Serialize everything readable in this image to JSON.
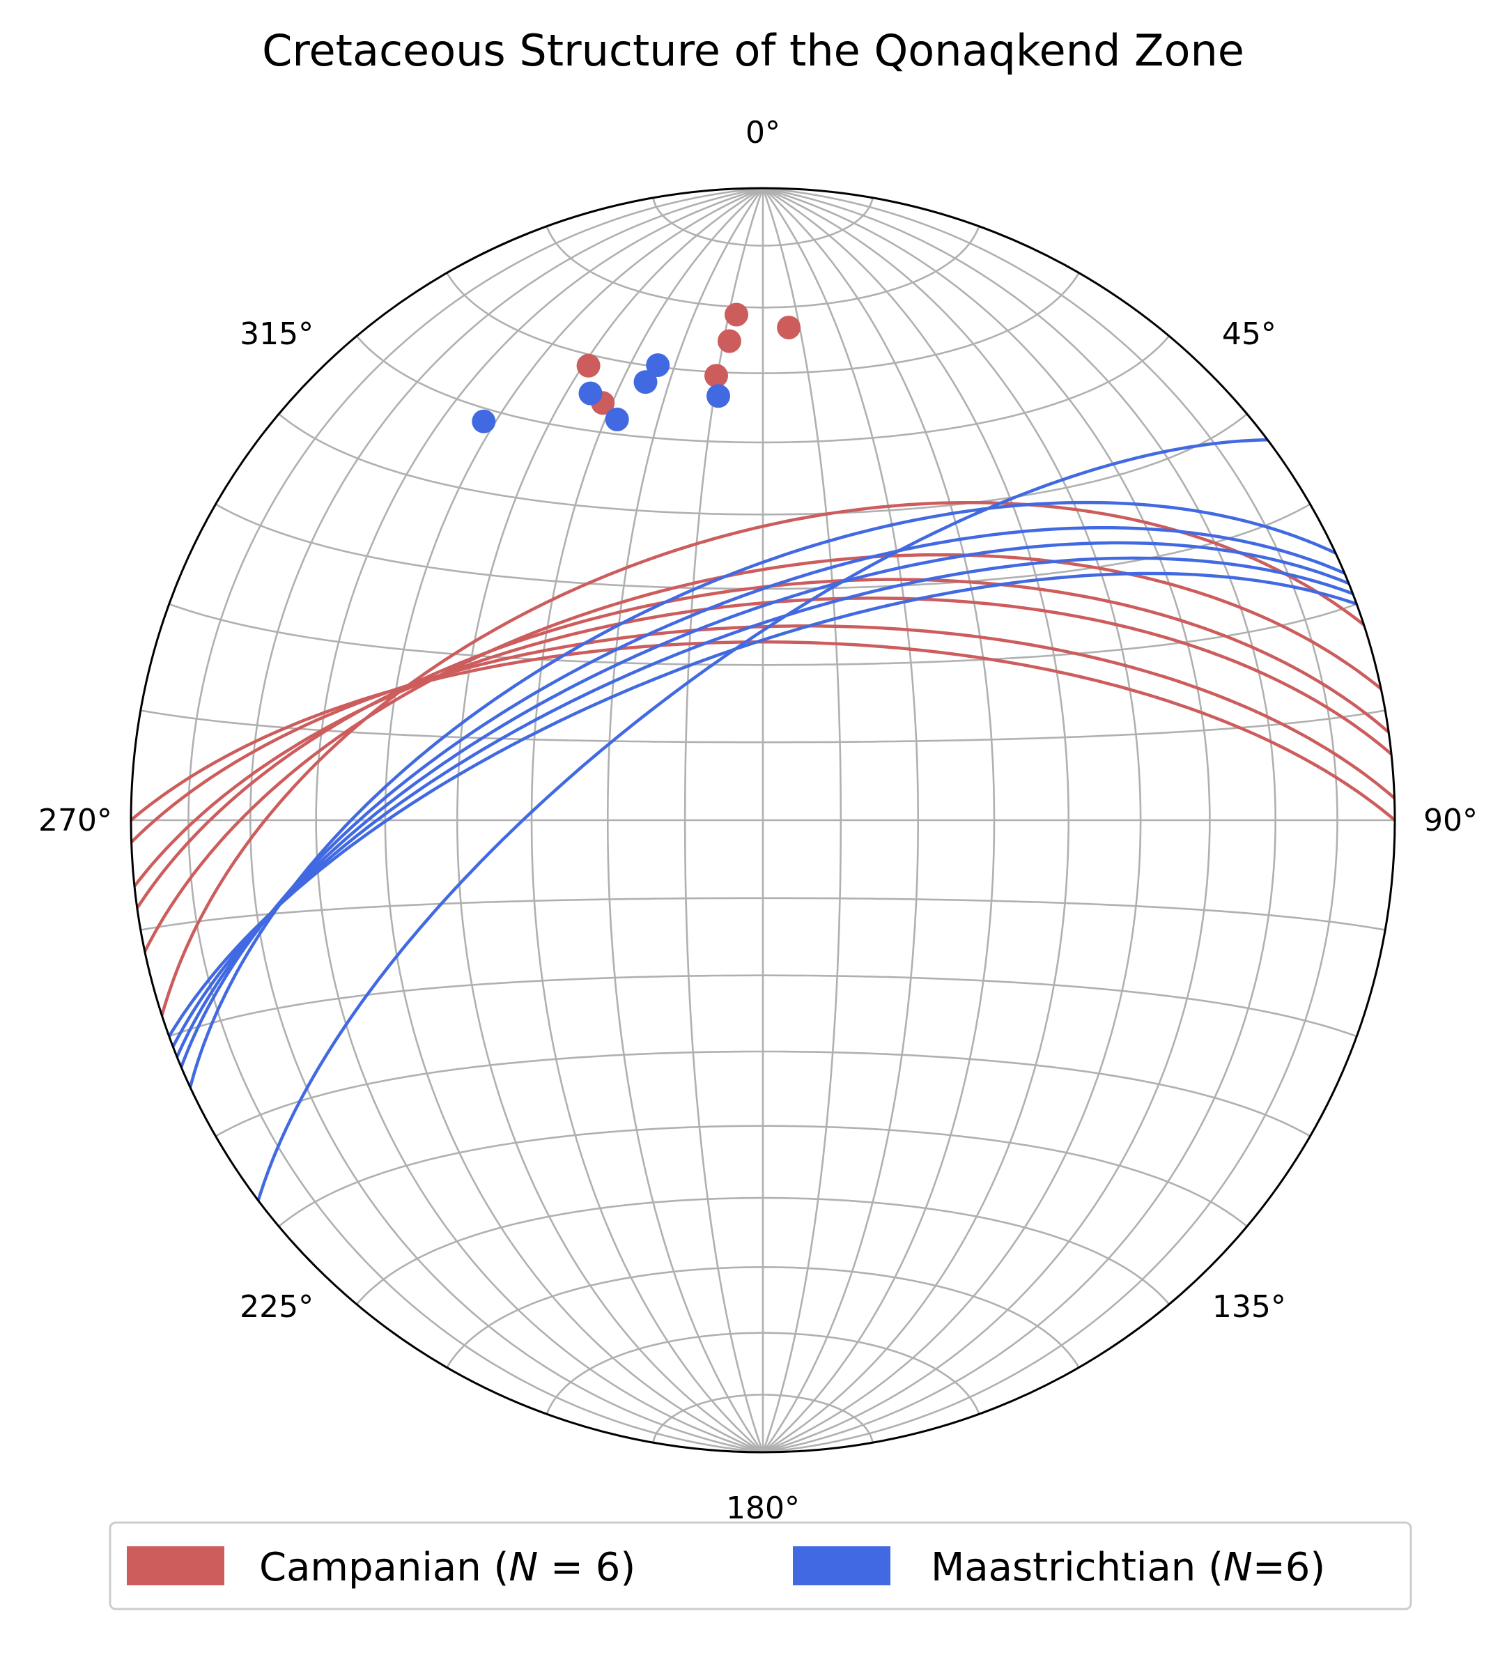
{
  "chart_data": {
    "type": "scatter",
    "projection": "equal-area stereonet (lower hemisphere)",
    "title": "Cretaceous Structure of the Qonaqkend Zone",
    "azimuth_ticks": [
      "0°",
      "45°",
      "90°",
      "135°",
      "180°",
      "225°",
      "270°",
      "315°"
    ],
    "grid": true,
    "legend_position": "bottom-center",
    "series": [
      {
        "name": "Campanian (N = 6)",
        "legend_parts": [
          "Campanian (",
          "N",
          " = 6)"
        ],
        "color": "#CD5C5C",
        "planes": [
          {
            "strike": 252,
            "dip": 53
          },
          {
            "strike": 258,
            "dip": 58
          },
          {
            "strike": 262,
            "dip": 60
          },
          {
            "strike": 264,
            "dip": 62
          },
          {
            "strike": 268,
            "dip": 65
          },
          {
            "strike": 270,
            "dip": 67
          }
        ],
        "poles": [
          {
            "trend": 357,
            "plunge": 21
          },
          {
            "trend": 3,
            "plunge": 23
          },
          {
            "trend": 339,
            "plunge": 24
          },
          {
            "trend": 356,
            "plunge": 25
          },
          {
            "trend": 354,
            "plunge": 30
          },
          {
            "trend": 339,
            "plunge": 30
          }
        ]
      },
      {
        "name": "Maastrichtian (N=6)",
        "legend_parts": [
          "Maastrichtian (",
          "N",
          "=6)"
        ],
        "color": "#4169E1",
        "planes": [
          {
            "strike": 245,
            "dip": 59
          },
          {
            "strike": 247,
            "dip": 62
          },
          {
            "strike": 248,
            "dip": 64
          },
          {
            "strike": 249,
            "dip": 66
          },
          {
            "strike": 250,
            "dip": 68
          },
          {
            "strike": 233,
            "dip": 70
          }
        ],
        "poles": [
          {
            "trend": 325,
            "plunge": 24
          },
          {
            "trend": 354,
            "plunge": 33
          },
          {
            "trend": 340,
            "plunge": 33
          },
          {
            "trend": 338,
            "plunge": 28
          },
          {
            "trend": 345,
            "plunge": 29
          },
          {
            "trend": 347,
            "plunge": 27
          }
        ]
      }
    ]
  }
}
